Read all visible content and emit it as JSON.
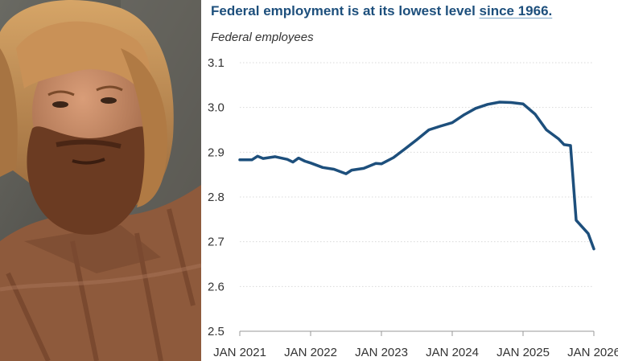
{
  "chart_data": {
    "type": "line",
    "title_main": "Federal employment is at its lowest level",
    "title_highlight": "since 1966.",
    "ylabel": "Federal employees",
    "xlabel": "",
    "y_ticks": [
      "2.5",
      "2.6",
      "2.7",
      "2.8",
      "2.9",
      "3.0",
      "3.1"
    ],
    "x_ticks": [
      "JAN 2021",
      "JAN 2022",
      "JAN 2023",
      "JAN 2024",
      "JAN 2025",
      "JAN 2026"
    ],
    "ylim": [
      2.5,
      3.1
    ],
    "xlim": [
      2021.0,
      2026.0
    ],
    "grid": "horizontal",
    "series": [
      {
        "color": "#1d4f7c",
        "points": [
          [
            2021.0,
            2.883
          ],
          [
            2021.17,
            2.883
          ],
          [
            2021.25,
            2.891
          ],
          [
            2021.33,
            2.886
          ],
          [
            2021.5,
            2.89
          ],
          [
            2021.67,
            2.884
          ],
          [
            2021.75,
            2.878
          ],
          [
            2021.83,
            2.887
          ],
          [
            2021.92,
            2.88
          ],
          [
            2022.0,
            2.876
          ],
          [
            2022.17,
            2.866
          ],
          [
            2022.33,
            2.862
          ],
          [
            2022.5,
            2.852
          ],
          [
            2022.58,
            2.86
          ],
          [
            2022.75,
            2.864
          ],
          [
            2022.92,
            2.875
          ],
          [
            2023.0,
            2.874
          ],
          [
            2023.17,
            2.888
          ],
          [
            2023.33,
            2.907
          ],
          [
            2023.5,
            2.928
          ],
          [
            2023.67,
            2.95
          ],
          [
            2023.83,
            2.958
          ],
          [
            2024.0,
            2.966
          ],
          [
            2024.17,
            2.984
          ],
          [
            2024.33,
            2.998
          ],
          [
            2024.5,
            3.007
          ],
          [
            2024.67,
            3.012
          ],
          [
            2024.83,
            3.011
          ],
          [
            2025.0,
            3.008
          ],
          [
            2025.17,
            2.985
          ],
          [
            2025.33,
            2.95
          ],
          [
            2025.5,
            2.93
          ],
          [
            2025.58,
            2.917
          ],
          [
            2025.67,
            2.915
          ],
          [
            2025.75,
            2.748
          ],
          [
            2025.92,
            2.718
          ],
          [
            2026.0,
            2.684
          ]
        ]
      }
    ]
  },
  "photo": {
    "colors": {
      "background": "#5b5a53",
      "hair": "#b9844c",
      "skin": "#c58a66",
      "beard": "#6b3b22",
      "jacket": "#8e5a3c"
    }
  }
}
